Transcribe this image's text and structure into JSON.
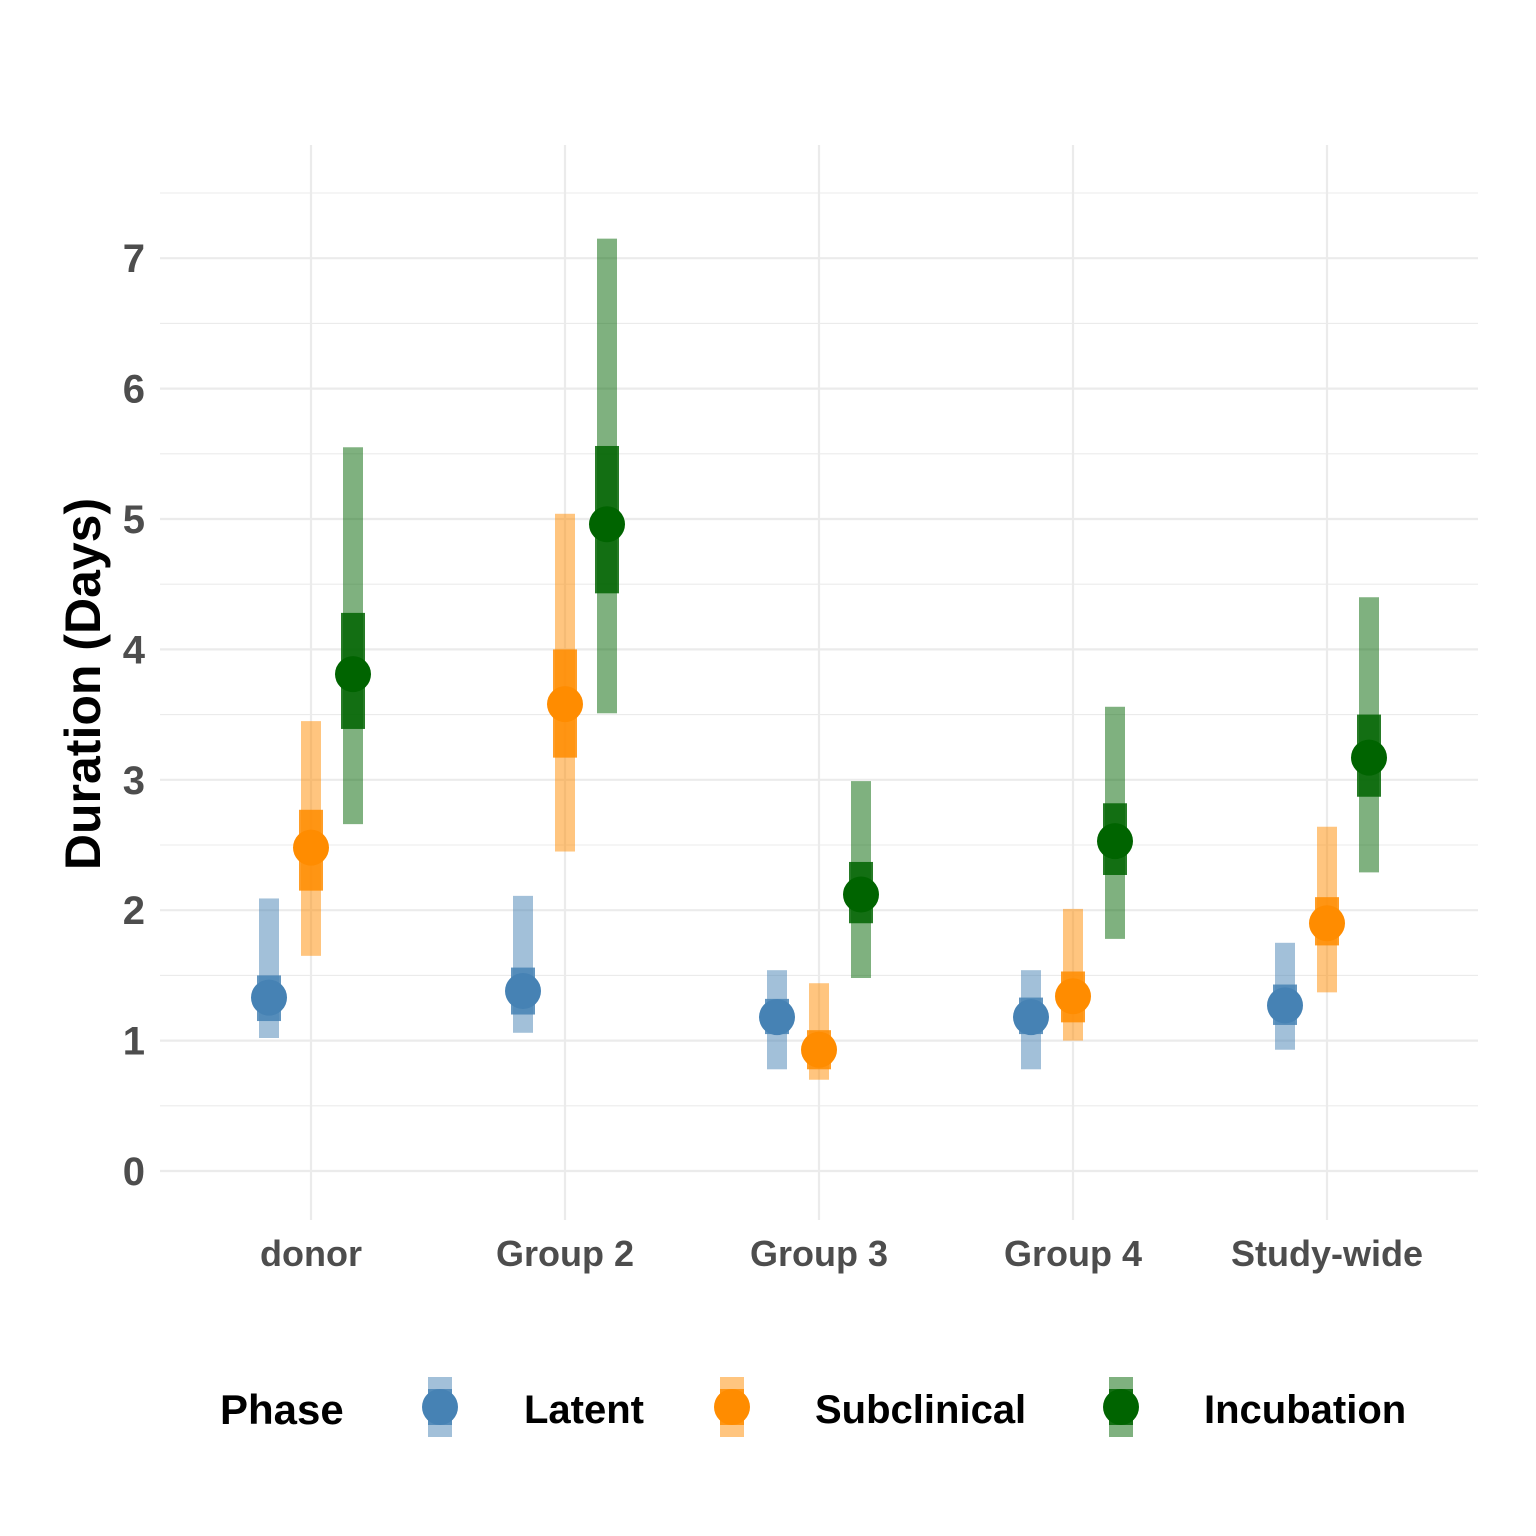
{
  "chart_data": {
    "type": "pointrange",
    "ylabel": "Duration (Days)",
    "xlabel": "",
    "ylim": [
      -0.35,
      7.5
    ],
    "yticks": [
      0,
      1,
      2,
      3,
      4,
      5,
      6,
      7
    ],
    "grid": true,
    "legend_position": "bottom",
    "legend_title": "Phase",
    "categories": [
      "donor",
      "Group 2",
      "Group 3",
      "Group 4",
      "Study-wide"
    ],
    "series": [
      {
        "name": "Latent",
        "color": "#4682B4",
        "estimate": [
          1.33,
          1.38,
          1.18,
          1.18,
          1.27
        ],
        "inner": [
          [
            1.15,
            1.5
          ],
          [
            1.2,
            1.56
          ],
          [
            1.05,
            1.32
          ],
          [
            1.05,
            1.33
          ],
          [
            1.12,
            1.43
          ]
        ],
        "outer": [
          [
            1.02,
            2.09
          ],
          [
            1.06,
            2.11
          ],
          [
            0.78,
            1.54
          ],
          [
            0.78,
            1.54
          ],
          [
            0.93,
            1.75
          ]
        ]
      },
      {
        "name": "Subclinical",
        "color": "#FF8C00",
        "estimate": [
          2.48,
          3.58,
          0.93,
          1.34,
          1.9
        ],
        "inner": [
          [
            2.15,
            2.77
          ],
          [
            3.17,
            4.0
          ],
          [
            0.78,
            1.08
          ],
          [
            1.14,
            1.53
          ],
          [
            1.73,
            2.1
          ]
        ],
        "outer": [
          [
            1.65,
            3.45
          ],
          [
            2.45,
            5.04
          ],
          [
            0.7,
            1.44
          ],
          [
            1.0,
            2.01
          ],
          [
            1.37,
            2.64
          ]
        ]
      },
      {
        "name": "Incubation",
        "color": "#006400",
        "estimate": [
          3.81,
          4.96,
          2.12,
          2.53,
          3.17
        ],
        "inner": [
          [
            3.39,
            4.28
          ],
          [
            4.43,
            5.56
          ],
          [
            1.9,
            2.37
          ],
          [
            2.27,
            2.82
          ],
          [
            2.87,
            3.5
          ]
        ],
        "outer": [
          [
            2.66,
            5.55
          ],
          [
            3.51,
            7.15
          ],
          [
            1.48,
            2.99
          ],
          [
            1.78,
            3.56
          ],
          [
            2.29,
            4.4
          ]
        ]
      }
    ]
  }
}
